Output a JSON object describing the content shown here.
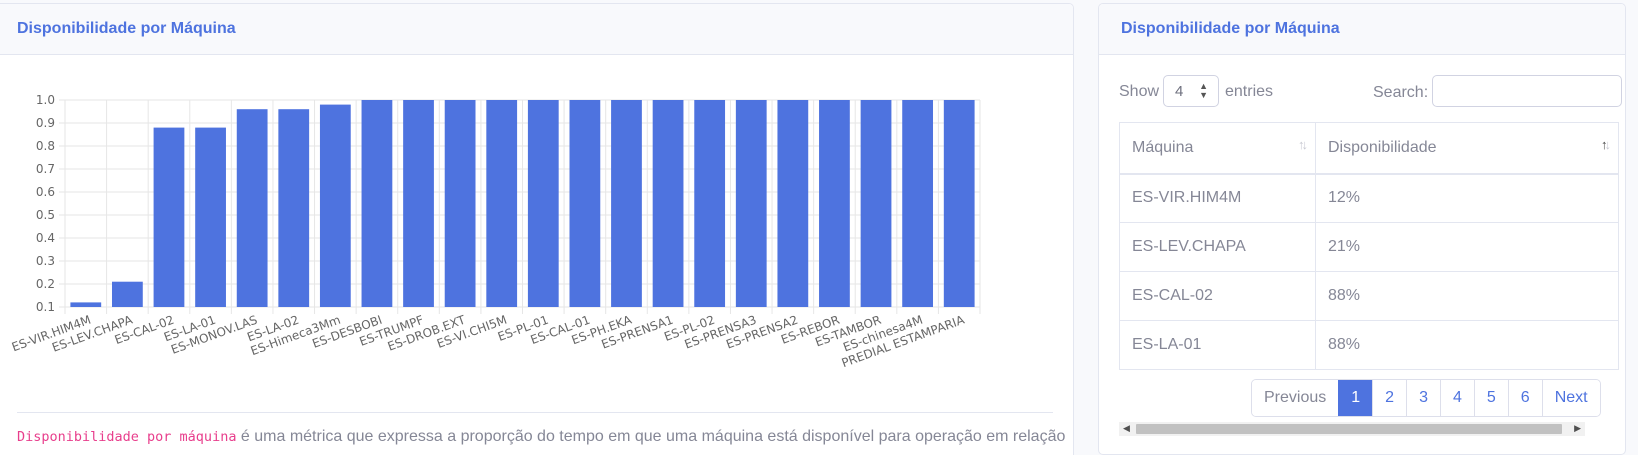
{
  "left_card": {
    "title": "Disponibilidade por Máquina",
    "description_code": "Disponibilidade por máquina",
    "description_text": " é uma métrica que expressa a proporção do tempo em que uma máquina está disponível para operação em relação"
  },
  "chart_data": {
    "type": "bar",
    "categories": [
      "ES-VIR.HIM4M",
      "ES-LEV.CHAPA",
      "ES-CAL-02",
      "ES-LA-01",
      "ES-MONOV.LAS",
      "ES-LA-02",
      "ES-Himeca3Mm",
      "ES-DESBOBI",
      "ES-TRUMPF",
      "ES-DROB.EXT",
      "ES-VI.CHI5M",
      "ES-PL-01",
      "ES-CAL-01",
      "ES-PH.EKA",
      "ES-PRENSA1",
      "ES-PL-02",
      "ES-PRENSA3",
      "ES-PRENSA2",
      "ES-REBOR",
      "ES-TAMBOR",
      "ES-chinesa4M",
      "PREDIAL ESTAMPARIA"
    ],
    "values": [
      0.12,
      0.21,
      0.88,
      0.88,
      0.96,
      0.96,
      0.98,
      1.0,
      1.0,
      1.0,
      1.0,
      1.0,
      1.0,
      1.0,
      1.0,
      1.0,
      1.0,
      1.0,
      1.0,
      1.0,
      1.0,
      1.0
    ],
    "yticks": [
      "0.1",
      "0.2",
      "0.3",
      "0.4",
      "0.5",
      "0.6",
      "0.7",
      "0.8",
      "0.9",
      "1.0"
    ],
    "ylim": [
      0.1,
      1.0
    ],
    "grid": true,
    "bar_color": "#4e73df"
  },
  "right_card": {
    "title": "Disponibilidade por Máquina",
    "show_label": "Show",
    "entries_value": "4",
    "entries_label": "entries",
    "search_label": "Search:",
    "search_value": "",
    "table": {
      "headers": [
        "Máquina",
        "Disponibilidade"
      ],
      "rows": [
        [
          "ES-VIR.HIM4M",
          "12%"
        ],
        [
          "ES-LEV.CHAPA",
          "21%"
        ],
        [
          "ES-CAL-02",
          "88%"
        ],
        [
          "ES-LA-01",
          "88%"
        ]
      ]
    },
    "pagination": {
      "previous": "Previous",
      "pages": [
        "1",
        "2",
        "3",
        "4",
        "5",
        "6"
      ],
      "active_page": "1",
      "next": "Next"
    }
  },
  "colors": {
    "primary": "#4e73df",
    "text": "#858796",
    "code": "#e83e8c"
  }
}
